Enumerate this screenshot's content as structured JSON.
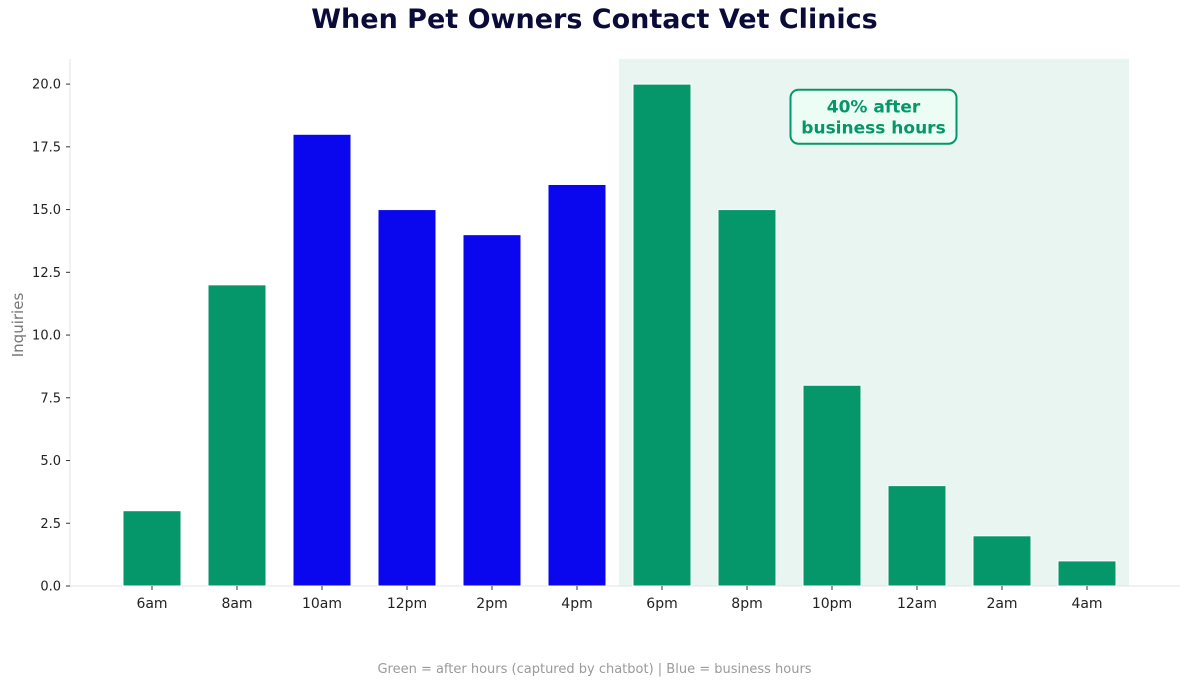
{
  "chart_data": {
    "type": "bar",
    "title": "When Pet Owners Contact Vet Clinics",
    "ylabel": "Inquiries",
    "xlabel": "",
    "categories": [
      "6am",
      "8am",
      "10am",
      "12pm",
      "2pm",
      "4pm",
      "6pm",
      "8pm",
      "10pm",
      "12am",
      "2am",
      "4am"
    ],
    "values": [
      3,
      12,
      18,
      15,
      14,
      16,
      20,
      15,
      8,
      4,
      2,
      1
    ],
    "bar_groups": [
      "after",
      "after",
      "business",
      "business",
      "business",
      "business",
      "after",
      "after",
      "after",
      "after",
      "after",
      "after"
    ],
    "ylim": [
      0,
      21
    ],
    "yticks": [
      "0.0",
      "2.5",
      "5.0",
      "7.5",
      "10.0",
      "12.5",
      "15.0",
      "17.5",
      "20.0"
    ],
    "grid": false,
    "colors": {
      "after": "#059669",
      "business": "#0a07ef",
      "shade": "#e8f5f0",
      "annotation_bg": "#ecfdf5",
      "annotation_text": "#059669"
    },
    "shaded_region": {
      "from_category": "6pm",
      "to_category": "4am"
    },
    "annotation": {
      "lines": [
        "40% after",
        "business hours"
      ],
      "anchor_category": "10pm",
      "anchor_value": 18.7
    },
    "footer": "Green = after hours (captured by chatbot)  |  Blue = business hours"
  }
}
